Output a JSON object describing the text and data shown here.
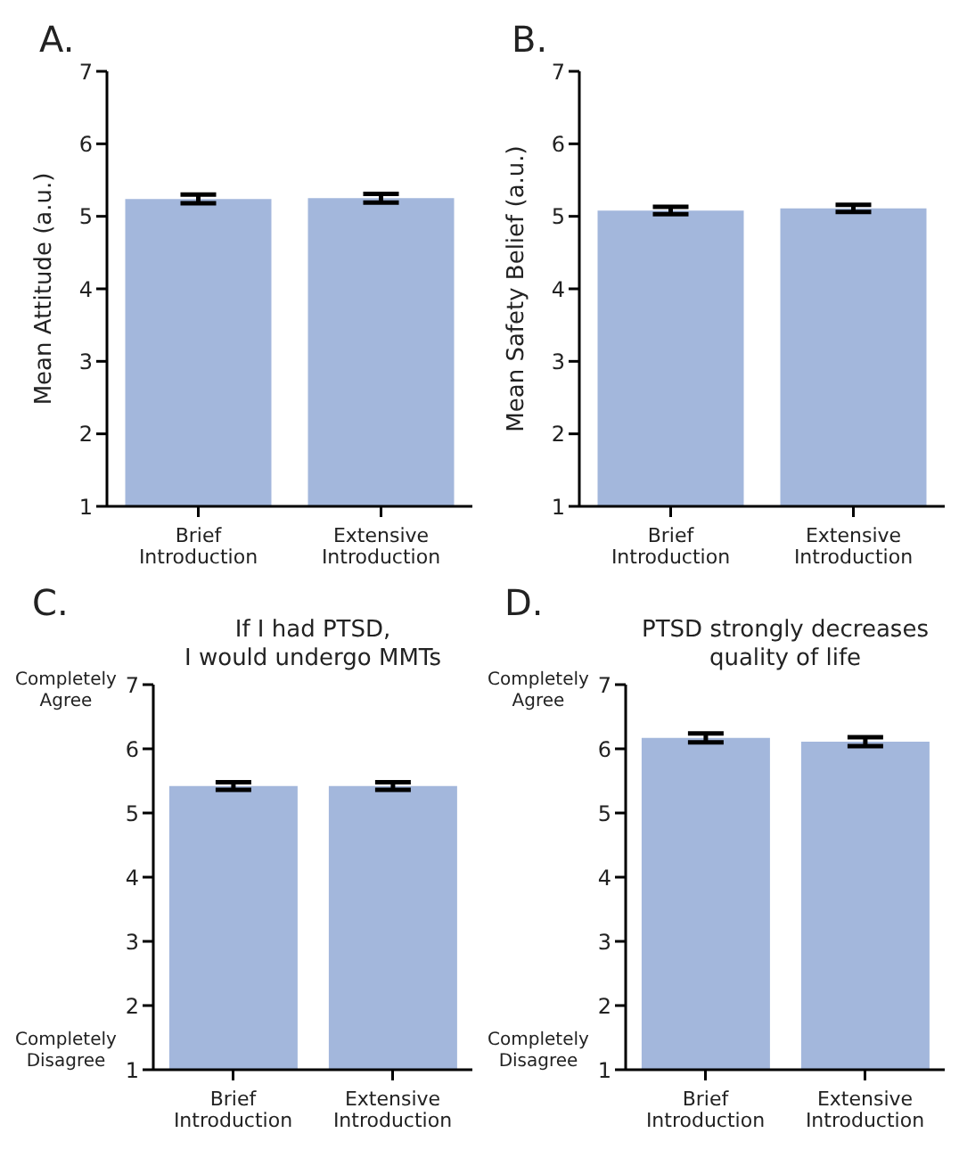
{
  "chart_data": [
    {
      "type": "bar",
      "title": "A.",
      "ylabel": "Mean Attitude (a.u.)",
      "categories": [
        "Brief Introduction",
        "Extensive Introduction"
      ],
      "values": [
        5.24,
        5.25
      ],
      "errors": [
        0.06,
        0.06
      ],
      "color": "#a3b7dc",
      "ylim": [
        1,
        7
      ],
      "yticks": [
        1,
        2,
        3,
        4,
        5,
        6,
        7
      ],
      "grid": false
    },
    {
      "type": "bar",
      "title": "B.",
      "ylabel": "Mean Safety Belief (a.u.)",
      "categories": [
        "Brief Introduction",
        "Extensive Introduction"
      ],
      "values": [
        5.08,
        5.11
      ],
      "errors": [
        0.05,
        0.05
      ],
      "color": "#a3b7dc",
      "ylim": [
        1,
        7
      ],
      "yticks": [
        1,
        2,
        3,
        4,
        5,
        6,
        7
      ],
      "grid": false
    },
    {
      "type": "bar",
      "title": "C.",
      "subtitle": "If I had PTSD,\nI would undergo MMTs",
      "annotations": [
        "Completely\nAgree",
        "Completely\nDisagree"
      ],
      "categories": [
        "Brief Introduction",
        "Extensive Introduction"
      ],
      "values": [
        5.42,
        5.42
      ],
      "errors": [
        0.06,
        0.06
      ],
      "color": "#a3b7dc",
      "ylim": [
        1,
        7
      ],
      "yticks": [
        1,
        2,
        3,
        4,
        5,
        6,
        7
      ],
      "grid": false
    },
    {
      "type": "bar",
      "title": "D.",
      "subtitle": "PTSD strongly decreases\nquality of life",
      "annotations": [
        "Completely\nAgree",
        "Completely\nDisagree"
      ],
      "categories": [
        "Brief Introduction",
        "Extensive Introduction"
      ],
      "values": [
        6.17,
        6.11
      ],
      "errors": [
        0.07,
        0.07
      ],
      "color": "#a3b7dc",
      "ylim": [
        1,
        7
      ],
      "yticks": [
        1,
        2,
        3,
        4,
        5,
        6,
        7
      ],
      "grid": false
    }
  ]
}
